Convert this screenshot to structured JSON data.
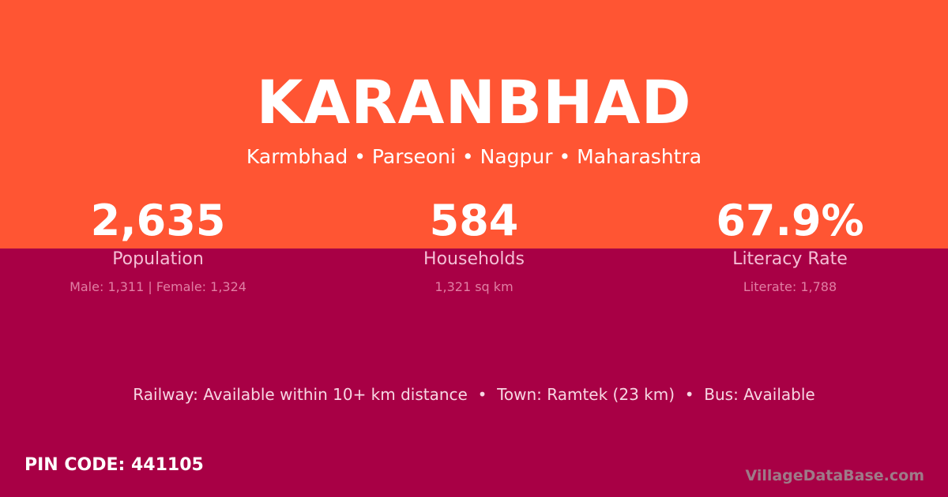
{
  "village": {
    "name": "KARANBHAD",
    "subtitle": "Karmbhad • Parseoni • Nagpur • Maharashtra"
  },
  "stats": [
    {
      "value": "2,635",
      "label": "Population",
      "detail": "Male: 1,311 | Female: 1,324"
    },
    {
      "value": "584",
      "label": "Households",
      "detail": "1,321 sq km"
    },
    {
      "value": "67.9%",
      "label": "Literacy Rate",
      "detail": "Literate: 1,788"
    }
  ],
  "access": "Railway: Available within 10+ km distance  •  Town: Ramtek (23 km)  •  Bus: Available",
  "pin": "PIN CODE: 441105",
  "brand": "VillageDataBase.com",
  "colors": {
    "top": "#ff5533",
    "bottom": "#a80045"
  }
}
